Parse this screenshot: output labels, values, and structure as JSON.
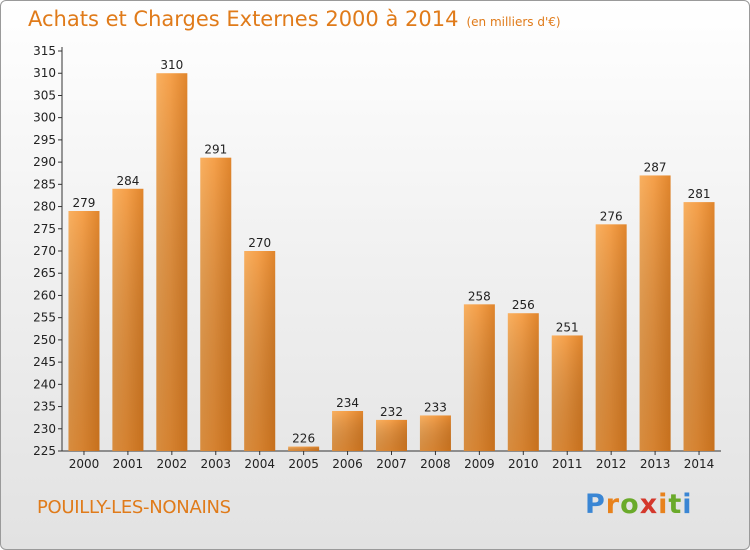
{
  "header": {
    "title": "Achats et Charges Externes 2000 à 2014",
    "subtitle": "(en milliers d'€)"
  },
  "footer": {
    "commune": "POUILLY-LES-NONAINS",
    "brand": "Proxiti"
  },
  "colors": {
    "bar_light": "#f7a550",
    "bar_dark": "#d6751e",
    "title": "#e07b1a"
  },
  "chart_data": {
    "type": "bar",
    "title": "Achats et Charges Externes 2000 à 2014",
    "subtitle": "(en milliers d'€)",
    "categories": [
      "2000",
      "2001",
      "2002",
      "2003",
      "2004",
      "2005",
      "2006",
      "2007",
      "2008",
      "2009",
      "2010",
      "2011",
      "2012",
      "2013",
      "2014"
    ],
    "values": [
      279,
      284,
      310,
      291,
      270,
      226,
      234,
      232,
      233,
      258,
      256,
      251,
      276,
      287,
      281
    ],
    "ylim": [
      225,
      315
    ],
    "yticks": [
      225,
      230,
      235,
      240,
      245,
      250,
      255,
      260,
      265,
      270,
      275,
      280,
      285,
      290,
      295,
      300,
      305,
      310,
      315
    ],
    "grid": false,
    "xlabel": "",
    "ylabel": ""
  }
}
